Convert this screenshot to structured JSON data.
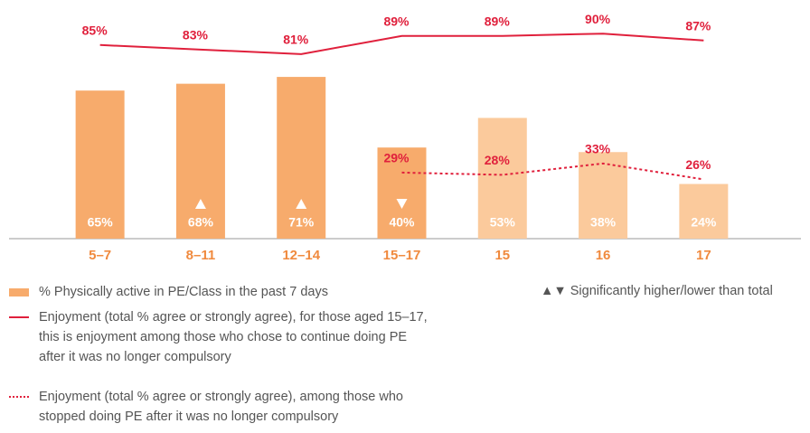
{
  "chart_data": {
    "type": "bar",
    "categories": [
      "5–7",
      "8–11",
      "12–14",
      "15–17",
      "15",
      "16",
      "17"
    ],
    "ylim": [
      0,
      100
    ],
    "series": [
      {
        "name": "% Physically active in PE/Class in the past 7 days",
        "type": "bar",
        "colors": [
          "#f7ab6c",
          "#f7ab6c",
          "#f7ab6c",
          "#f7ab6c",
          "#fbca9c",
          "#fbca9c",
          "#fbca9c"
        ],
        "values": [
          65,
          68,
          71,
          40,
          53,
          38,
          24
        ],
        "value_labels": [
          "65%",
          "68%",
          "71%",
          "40%",
          "53%",
          "38%",
          "24%"
        ]
      },
      {
        "name": "Enjoyment (total % agree or strongly agree), for those aged 15–17, this is enjoyment among those who chose to continue doing PE after it was no longer compulsory",
        "type": "line",
        "color": "#e0203c",
        "dash": "solid",
        "values": [
          85,
          83,
          81,
          89,
          89,
          90,
          87
        ],
        "value_labels": [
          "85%",
          "83%",
          "81%",
          "89%",
          "89%",
          "90%",
          "87%"
        ]
      },
      {
        "name": "Enjoyment (total % agree or strongly agree), among those who stopped doing PE after it was no longer compulsory",
        "type": "line",
        "color": "#e0203c",
        "dash": "dotted",
        "values": [
          null,
          null,
          null,
          29,
          28,
          33,
          26
        ],
        "value_labels": [
          null,
          null,
          null,
          "29%",
          "28%",
          "33%",
          "26%"
        ]
      }
    ],
    "significance": [
      null,
      "up",
      "up",
      "down",
      null,
      null,
      null
    ],
    "significance_legend": "▲▼ Significantly higher/lower than total"
  }
}
